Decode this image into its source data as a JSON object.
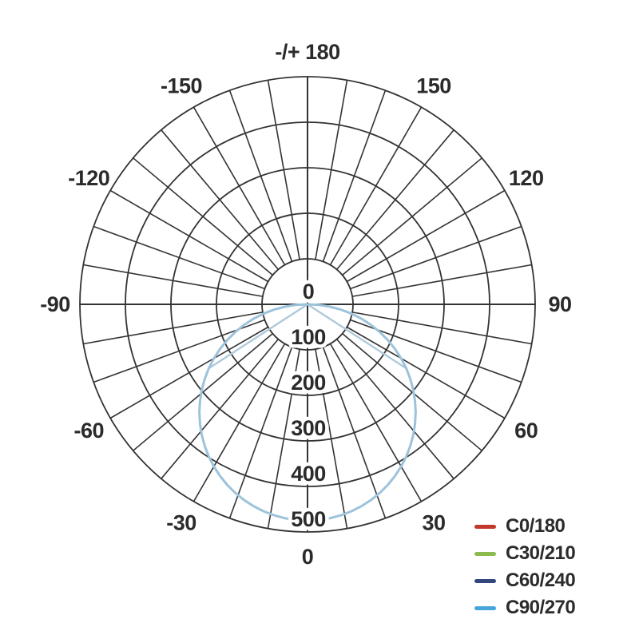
{
  "chart_data": {
    "type": "polar",
    "title": "",
    "description": "Photometric luminous intensity distribution (polar) diagram",
    "zero_direction": "down",
    "spoke_step_deg": 10,
    "rlim": [
      0,
      500
    ],
    "radial_ticks": [
      "0",
      "100",
      "200",
      "300",
      "400",
      "500"
    ],
    "angle_labels": [
      {
        "label": "-/+ 180",
        "deg": 180
      },
      {
        "label": "150",
        "deg": 150
      },
      {
        "label": "120",
        "deg": 120
      },
      {
        "label": "90",
        "deg": 90
      },
      {
        "label": "60",
        "deg": 60
      },
      {
        "label": "30",
        "deg": 30
      },
      {
        "label": "0",
        "deg": 0
      },
      {
        "label": "-30",
        "deg": -30
      },
      {
        "label": "-60",
        "deg": -60
      },
      {
        "label": "-90",
        "deg": -90
      },
      {
        "label": "-120",
        "deg": -120
      },
      {
        "label": "-150",
        "deg": -150
      }
    ],
    "sample_angles_deg": [
      -90,
      -75,
      -60,
      -45,
      -30,
      -15,
      0,
      15,
      30,
      45,
      60,
      75,
      90
    ],
    "series": [
      {
        "name": "C0/180",
        "color": "#c0392b",
        "peak": 475,
        "cutoff_deg": 90,
        "values": [
          0,
          123,
          238,
          336,
          411,
          459,
          475,
          459,
          411,
          336,
          238,
          123,
          0
        ]
      },
      {
        "name": "C30/210",
        "color": "#8bbb4e",
        "peak": 475,
        "cutoff_deg": 90,
        "values": [
          0,
          123,
          238,
          336,
          411,
          459,
          475,
          459,
          411,
          336,
          238,
          123,
          0
        ]
      },
      {
        "name": "C60/240",
        "color": "#32487c",
        "peak": 475,
        "cutoff_deg": 57,
        "values": [
          0,
          0,
          0,
          336,
          411,
          459,
          475,
          459,
          411,
          336,
          0,
          0,
          0
        ]
      },
      {
        "name": "C90/270",
        "color": "#47a5dc",
        "peak": 475,
        "cutoff_deg": 90,
        "values": [
          0,
          123,
          238,
          336,
          411,
          459,
          475,
          459,
          411,
          336,
          238,
          123,
          0
        ]
      }
    ],
    "plot_style": {
      "grid_color": "#333333",
      "text_color": "#2b2b2b",
      "visible_curve_color": "#9dc3da",
      "secondary_curve_color": "#aec9da",
      "legend_position": "bottom-right",
      "grid": true
    }
  }
}
